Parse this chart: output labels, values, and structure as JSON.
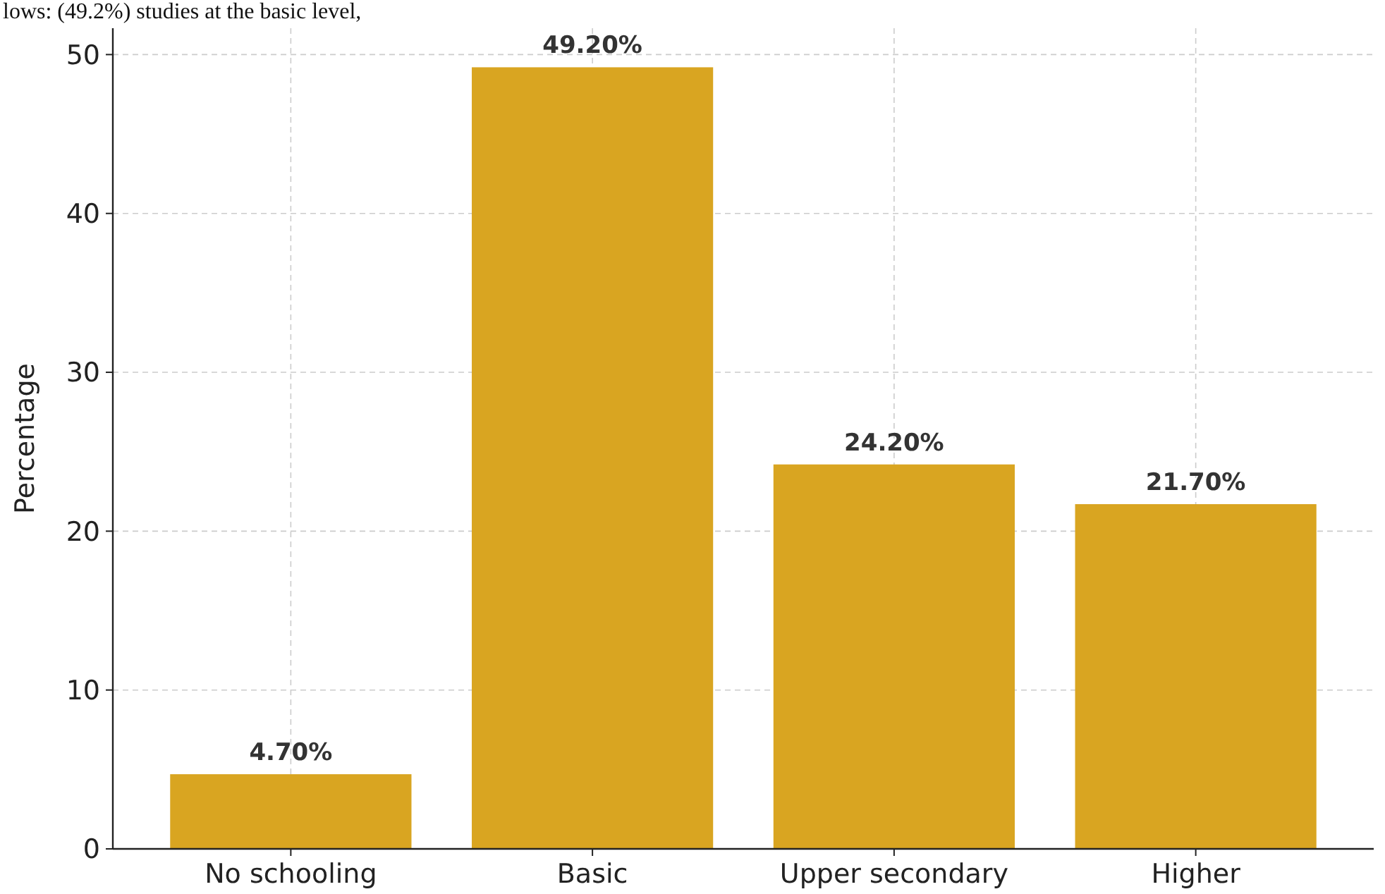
{
  "chart_data": {
    "type": "bar",
    "ylabel": "Percentage",
    "categories": [
      "No schooling",
      "Basic",
      "Upper secondary",
      "Higher"
    ],
    "values": [
      4.7,
      49.2,
      24.2,
      21.7
    ],
    "value_labels": [
      "4.70%",
      "49.20%",
      "24.20%",
      "21.70%"
    ],
    "color": "#d9a521",
    "ylim": [
      0,
      51.66
    ],
    "yticks": [
      0,
      10,
      20,
      30,
      40,
      50
    ],
    "grid": true,
    "annotations": [
      "lows: (49.2%) studies at the basic level,"
    ]
  }
}
